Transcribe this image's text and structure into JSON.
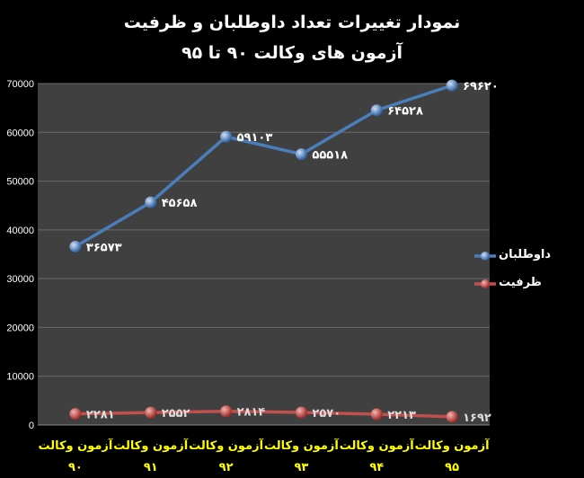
{
  "chart_data": {
    "type": "line",
    "title": "نمودار تغییرات تعداد داوطلبان و ظرفیت",
    "subtitle": "آزمون های وکالت ۹۰ تا ۹۵",
    "categories": [
      {
        "line1": "آزمون وکالت",
        "line2": "۹۰"
      },
      {
        "line1": "آزمون وکالت",
        "line2": "۹۱"
      },
      {
        "line1": "آزمون وکالت",
        "line2": "۹۲"
      },
      {
        "line1": "آزمون وکالت",
        "line2": "۹۳"
      },
      {
        "line1": "آزمون وکالت",
        "line2": "۹۴"
      },
      {
        "line1": "آزمون وکالت",
        "line2": "۹۵"
      }
    ],
    "ylim": [
      0,
      70000
    ],
    "yticks": [
      0,
      10000,
      20000,
      30000,
      40000,
      50000,
      60000,
      70000
    ],
    "grid": true,
    "legend_position": "right",
    "series": [
      {
        "name": "داوطلبان",
        "color": "#4a7ebb",
        "values": [
          36573,
          45658,
          59103,
          55518,
          64528,
          69620
        ],
        "labels": [
          "۳۶۵۷۳",
          "۴۵۶۵۸",
          "۵۹۱۰۳",
          "۵۵۵۱۸",
          "۶۴۵۲۸",
          "۶۹۶۲۰"
        ]
      },
      {
        "name": "ظرفیت",
        "color": "#c0504d",
        "values": [
          2281,
          2552,
          2814,
          2570,
          2213,
          1692
        ],
        "labels": [
          "۲۲۸۱",
          "۲۵۵۲",
          "۲۸۱۴",
          "۲۵۷۰",
          "۲۲۱۳",
          "۱۶۹۲"
        ]
      }
    ],
    "colors": {
      "plot_bg": "#404040",
      "grid": "#6a6a6a",
      "category_text": "#ffff00",
      "text": "#ffffff"
    }
  }
}
